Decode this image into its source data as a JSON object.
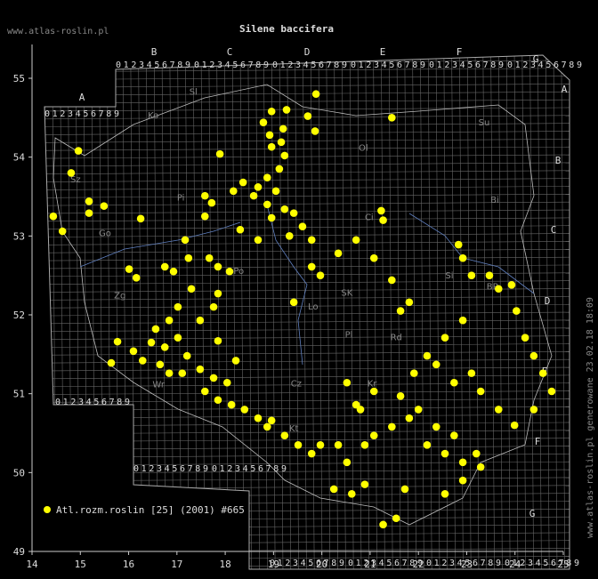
{
  "map": {
    "title": "Silene baccifera",
    "site": "www.atlas-roslin.pl",
    "footer_text": "www.atlas-roslin.pl generowane 23.02.18 18:09",
    "legend": "Atl.rozm.roslin [25] (2001) #665",
    "color": "#ffff00",
    "lon_lim": [
      14,
      25
    ],
    "lat_lim": [
      49,
      55
    ],
    "lon_ticks": [
      14,
      15,
      16,
      17,
      18,
      19,
      20,
      21,
      22,
      23,
      24,
      25
    ],
    "lat_ticks": [
      49,
      50,
      51,
      52,
      53,
      54,
      55
    ],
    "grid_letters": [
      "A",
      "B",
      "C",
      "D",
      "E",
      "F",
      "G"
    ],
    "digits": "0123456789",
    "regions": [
      {
        "label": "Sl",
        "lon": 17.34,
        "lat": 54.79
      },
      {
        "label": "Ko",
        "lon": 16.51,
        "lat": 54.49
      },
      {
        "label": "Su",
        "lon": 23.36,
        "lat": 54.4
      },
      {
        "label": "Ol",
        "lon": 20.86,
        "lat": 54.08
      },
      {
        "label": "Bi",
        "lon": 23.58,
        "lat": 53.42
      },
      {
        "label": "Ci",
        "lon": 20.98,
        "lat": 53.2
      },
      {
        "label": "Pi",
        "lon": 17.08,
        "lat": 53.45
      },
      {
        "label": "Sz",
        "lon": 14.9,
        "lat": 53.68
      },
      {
        "label": "Go",
        "lon": 15.51,
        "lat": 53.0
      },
      {
        "label": "Zg",
        "lon": 15.82,
        "lat": 52.21
      },
      {
        "label": "Po",
        "lon": 18.28,
        "lat": 52.52
      },
      {
        "label": "Lo",
        "lon": 19.82,
        "lat": 52.07
      },
      {
        "label": "SK",
        "lon": 20.52,
        "lat": 52.24
      },
      {
        "label": "Pl",
        "lon": 20.56,
        "lat": 51.71
      },
      {
        "label": "Rd",
        "lon": 21.54,
        "lat": 51.68
      },
      {
        "label": "Si",
        "lon": 22.64,
        "lat": 52.46
      },
      {
        "label": "BP",
        "lon": 23.53,
        "lat": 52.32
      },
      {
        "label": "Wr",
        "lon": 16.62,
        "lat": 51.08
      },
      {
        "label": "Cz",
        "lon": 19.47,
        "lat": 51.09
      },
      {
        "label": "Kt",
        "lon": 19.42,
        "lat": 50.52
      },
      {
        "label": "Kr",
        "lon": 21.04,
        "lat": 51.09
      }
    ],
    "points": [
      [
        18.79,
        54.44
      ],
      [
        18.96,
        54.58
      ],
      [
        19.27,
        54.6
      ],
      [
        19.88,
        54.8
      ],
      [
        19.71,
        54.52
      ],
      [
        19.86,
        54.33
      ],
      [
        18.92,
        54.28
      ],
      [
        19.2,
        54.36
      ],
      [
        18.96,
        54.13
      ],
      [
        19.16,
        54.19
      ],
      [
        19.23,
        54.02
      ],
      [
        19.12,
        53.85
      ],
      [
        18.87,
        53.74
      ],
      [
        18.68,
        53.62
      ],
      [
        19.05,
        53.57
      ],
      [
        18.59,
        53.51
      ],
      [
        18.87,
        53.4
      ],
      [
        19.23,
        53.34
      ],
      [
        18.96,
        53.23
      ],
      [
        19.42,
        53.29
      ],
      [
        19.6,
        53.12
      ],
      [
        19.33,
        53.0
      ],
      [
        18.68,
        52.95
      ],
      [
        18.31,
        53.08
      ],
      [
        18.37,
        53.68
      ],
      [
        18.17,
        53.57
      ],
      [
        21.45,
        54.5
      ],
      [
        17.89,
        54.04
      ],
      [
        14.96,
        54.08
      ],
      [
        14.81,
        53.8
      ],
      [
        14.44,
        53.25
      ],
      [
        14.63,
        53.06
      ],
      [
        15.18,
        53.44
      ],
      [
        15.18,
        53.29
      ],
      [
        15.49,
        53.38
      ],
      [
        16.25,
        53.22
      ],
      [
        17.58,
        53.51
      ],
      [
        17.72,
        53.42
      ],
      [
        17.58,
        53.25
      ],
      [
        17.17,
        52.95
      ],
      [
        17.24,
        52.72
      ],
      [
        16.75,
        52.61
      ],
      [
        16.01,
        52.58
      ],
      [
        16.16,
        52.47
      ],
      [
        16.93,
        52.55
      ],
      [
        17.3,
        52.33
      ],
      [
        17.67,
        52.72
      ],
      [
        17.85,
        52.61
      ],
      [
        18.09,
        52.55
      ],
      [
        17.85,
        52.27
      ],
      [
        17.76,
        52.1
      ],
      [
        17.48,
        51.93
      ],
      [
        17.02,
        52.1
      ],
      [
        16.84,
        51.93
      ],
      [
        16.56,
        51.82
      ],
      [
        16.47,
        51.65
      ],
      [
        16.75,
        51.59
      ],
      [
        17.02,
        51.71
      ],
      [
        17.21,
        51.48
      ],
      [
        16.65,
        51.37
      ],
      [
        16.29,
        51.42
      ],
      [
        16.1,
        51.54
      ],
      [
        15.77,
        51.66
      ],
      [
        15.64,
        51.39
      ],
      [
        16.84,
        51.26
      ],
      [
        17.11,
        51.26
      ],
      [
        17.48,
        51.31
      ],
      [
        17.76,
        51.2
      ],
      [
        18.04,
        51.14
      ],
      [
        17.58,
        51.03
      ],
      [
        17.85,
        50.92
      ],
      [
        18.13,
        50.86
      ],
      [
        18.4,
        50.8
      ],
      [
        18.68,
        50.69
      ],
      [
        18.87,
        50.58
      ],
      [
        19.23,
        50.47
      ],
      [
        19.51,
        50.35
      ],
      [
        19.79,
        50.24
      ],
      [
        19.97,
        50.35
      ],
      [
        20.34,
        50.35
      ],
      [
        20.52,
        50.13
      ],
      [
        20.89,
        50.35
      ],
      [
        21.08,
        50.47
      ],
      [
        21.45,
        50.58
      ],
      [
        21.81,
        50.69
      ],
      [
        22.18,
        50.35
      ],
      [
        22.55,
        50.24
      ],
      [
        22.92,
        50.13
      ],
      [
        23.2,
        50.24
      ],
      [
        22.74,
        50.47
      ],
      [
        22.37,
        50.58
      ],
      [
        22.0,
        50.8
      ],
      [
        21.63,
        50.97
      ],
      [
        21.08,
        51.03
      ],
      [
        20.52,
        51.14
      ],
      [
        20.71,
        50.86
      ],
      [
        19.79,
        52.95
      ],
      [
        19.79,
        52.61
      ],
      [
        19.97,
        52.5
      ],
      [
        19.42,
        52.16
      ],
      [
        20.34,
        52.78
      ],
      [
        20.71,
        52.95
      ],
      [
        21.08,
        52.72
      ],
      [
        21.45,
        52.44
      ],
      [
        21.63,
        52.05
      ],
      [
        21.81,
        52.16
      ],
      [
        21.91,
        51.26
      ],
      [
        22.18,
        51.48
      ],
      [
        22.55,
        51.71
      ],
      [
        22.92,
        51.93
      ],
      [
        23.1,
        52.5
      ],
      [
        23.47,
        52.5
      ],
      [
        23.66,
        52.33
      ],
      [
        23.93,
        52.38
      ],
      [
        24.03,
        52.05
      ],
      [
        24.21,
        51.71
      ],
      [
        24.39,
        51.48
      ],
      [
        24.58,
        51.26
      ],
      [
        24.76,
        51.03
      ],
      [
        24.39,
        50.8
      ],
      [
        23.99,
        50.6
      ],
      [
        23.66,
        50.8
      ],
      [
        23.29,
        51.03
      ],
      [
        23.1,
        51.26
      ],
      [
        22.74,
        51.14
      ],
      [
        22.37,
        51.37
      ],
      [
        22.92,
        52.72
      ],
      [
        22.83,
        52.89
      ],
      [
        21.27,
        53.2
      ],
      [
        21.23,
        53.32
      ],
      [
        18.96,
        50.66
      ],
      [
        17.85,
        51.67
      ],
      [
        18.22,
        51.42
      ],
      [
        21.27,
        49.34
      ],
      [
        21.54,
        49.42
      ],
      [
        20.89,
        49.85
      ],
      [
        20.25,
        49.79
      ],
      [
        20.62,
        49.73
      ],
      [
        21.72,
        49.79
      ],
      [
        22.55,
        49.73
      ],
      [
        22.92,
        49.9
      ],
      [
        23.29,
        50.07
      ],
      [
        20.8,
        50.8
      ]
    ]
  }
}
